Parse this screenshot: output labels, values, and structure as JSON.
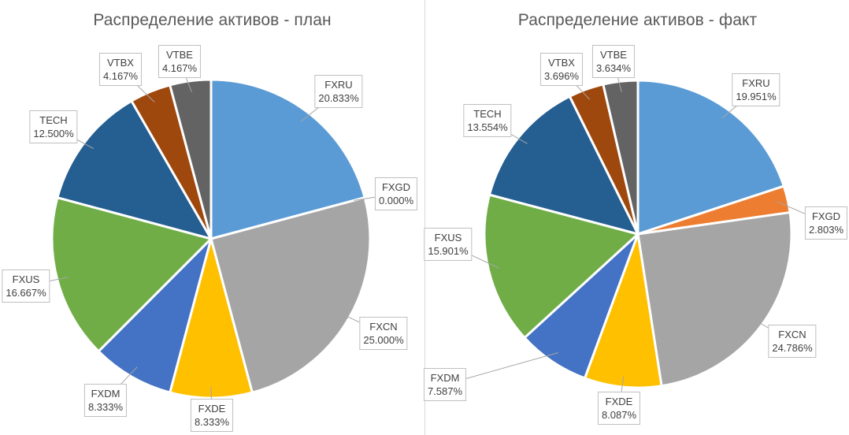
{
  "chart_data": [
    {
      "type": "pie",
      "title": "Распределение активов - план",
      "slices": [
        {
          "name": "FXRU",
          "value": 20.833,
          "label": "20.833%",
          "color": "#5B9BD5"
        },
        {
          "name": "FXGD",
          "value": 0.0,
          "label": "0.000%",
          "color": "#ED7D31"
        },
        {
          "name": "FXCN",
          "value": 25.0,
          "label": "25.000%",
          "color": "#A5A5A5"
        },
        {
          "name": "FXDE",
          "value": 8.333,
          "label": "8.333%",
          "color": "#FFC000"
        },
        {
          "name": "FXDM",
          "value": 8.333,
          "label": "8.333%",
          "color": "#4472C4"
        },
        {
          "name": "FXUS",
          "value": 16.667,
          "label": "16.667%",
          "color": "#70AD47"
        },
        {
          "name": "TECH",
          "value": 12.5,
          "label": "12.500%",
          "color": "#255E91"
        },
        {
          "name": "VTBX",
          "value": 4.167,
          "label": "4.167%",
          "color": "#9E480E"
        },
        {
          "name": "VTBE",
          "value": 4.167,
          "label": "4.167%",
          "color": "#636363"
        }
      ]
    },
    {
      "type": "pie",
      "title": "Распределение активов - факт",
      "slices": [
        {
          "name": "FXRU",
          "value": 19.951,
          "label": "19.951%",
          "color": "#5B9BD5"
        },
        {
          "name": "FXGD",
          "value": 2.803,
          "label": "2.803%",
          "color": "#ED7D31"
        },
        {
          "name": "FXCN",
          "value": 24.786,
          "label": "24.786%",
          "color": "#A5A5A5"
        },
        {
          "name": "FXDE",
          "value": 8.087,
          "label": "8.087%",
          "color": "#FFC000"
        },
        {
          "name": "FXDM",
          "value": 7.587,
          "label": "7.587%",
          "color": "#4472C4"
        },
        {
          "name": "FXUS",
          "value": 15.901,
          "label": "15.901%",
          "color": "#70AD47"
        },
        {
          "name": "TECH",
          "value": 13.554,
          "label": "13.554%",
          "color": "#255E91"
        },
        {
          "name": "VTBX",
          "value": 3.696,
          "label": "3.696%",
          "color": "#9E480E"
        },
        {
          "name": "VTBE",
          "value": 3.634,
          "label": "3.634%",
          "color": "#636363"
        }
      ]
    }
  ]
}
